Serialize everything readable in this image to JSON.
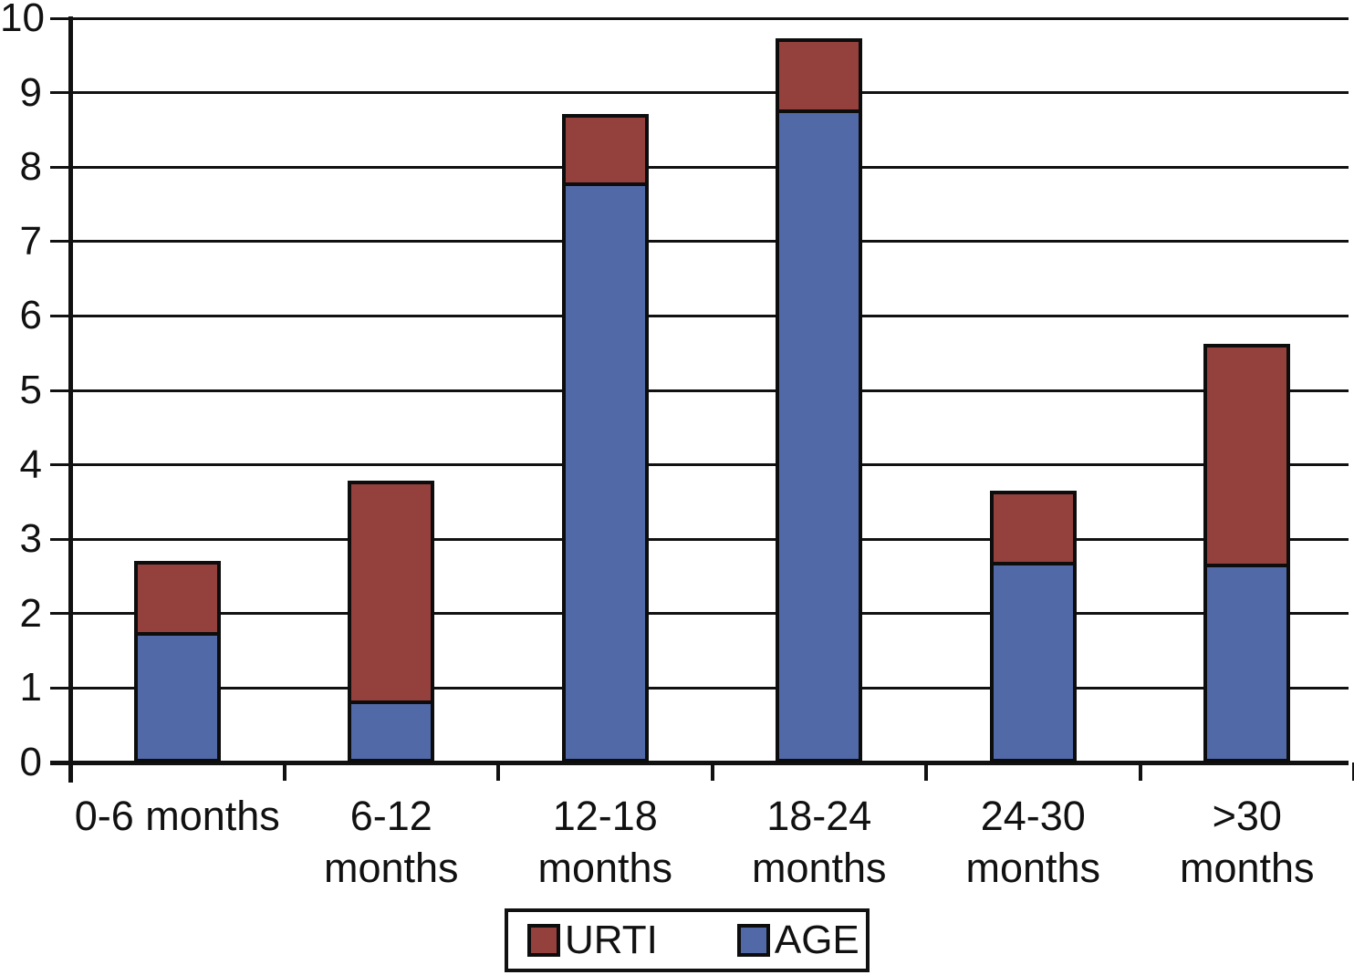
{
  "chart_data": {
    "type": "bar",
    "stacked": true,
    "title": "",
    "xlabel": "",
    "ylabel": "",
    "ylim": [
      0,
      10
    ],
    "ytick_step": 1,
    "grid": true,
    "legend_position": "bottom-center",
    "y_tick_labels": [
      "0",
      "1",
      "2",
      "3",
      "4",
      "5",
      "6",
      "7",
      "8",
      "9",
      "10"
    ],
    "categories": [
      "0-6 months",
      "6-12 months",
      "12-18 months",
      "18-24 months",
      "24-30 months",
      ">30 months"
    ],
    "category_label_lines": [
      [
        "0-6 months"
      ],
      [
        "6-12 months"
      ],
      [
        "12-18",
        "months"
      ],
      [
        "18-24",
        "months"
      ],
      [
        "24-30",
        "months"
      ],
      [
        ">30",
        "months"
      ]
    ],
    "series": [
      {
        "name": "AGE",
        "color": "#5269a8",
        "values": [
          1.7,
          0.78,
          7.75,
          8.73,
          2.65,
          2.62
        ]
      },
      {
        "name": "URTI",
        "color": "#94403d",
        "values": [
          1.0,
          3.0,
          0.97,
          1.0,
          1.0,
          3.0
        ]
      }
    ],
    "legend": [
      {
        "label": "URTI",
        "color": "#94403d"
      },
      {
        "label": "AGE",
        "color": "#5269a8"
      }
    ],
    "colors": {
      "axis": "#111111",
      "grid": "#111111",
      "bar_border": "#0d0d0d",
      "background": "#ffffff"
    }
  }
}
